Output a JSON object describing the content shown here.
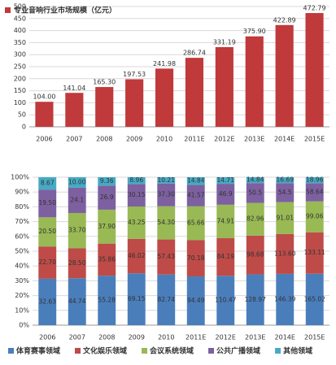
{
  "chart_data": [
    {
      "type": "bar",
      "legend_label": "专业音响行业市场规模（亿元）",
      "legend": "top-left",
      "categories": [
        "2006",
        "2007",
        "2008",
        "2009",
        "2010",
        "2011E",
        "2012E",
        "2013E",
        "2014E",
        "2015E"
      ],
      "values": [
        104.0,
        141.04,
        165.3,
        197.53,
        241.98,
        286.74,
        331.19,
        375.9,
        422.89,
        472.79
      ],
      "value_labels": [
        "104.00",
        "141.04",
        "165.30",
        "197.53",
        "241.98",
        "286.74",
        "331.19",
        "375.90",
        "422.89",
        "472.79"
      ],
      "color": "#c0393b",
      "ylim": [
        0,
        500
      ],
      "yticks": [
        0,
        50,
        100,
        150,
        200,
        250,
        300,
        350,
        400,
        450,
        500
      ],
      "grid": true
    },
    {
      "type": "stacked-percent-bar",
      "legend": "bottom",
      "categories": [
        "2006",
        "2007",
        "2008",
        "2009",
        "2010",
        "2011E",
        "2012E",
        "2013E",
        "2014E",
        "2015E"
      ],
      "ylim": [
        0,
        100
      ],
      "yticks": [
        {
          "value": 0,
          "label": "0%"
        },
        {
          "value": 10,
          "label": "10%"
        },
        {
          "value": 20,
          "label": "20%"
        },
        {
          "value": 30,
          "label": "30%"
        },
        {
          "value": 40,
          "label": "40%"
        },
        {
          "value": 50,
          "label": "50%"
        },
        {
          "value": 60,
          "label": "60%"
        },
        {
          "value": 70,
          "label": "70%"
        },
        {
          "value": 80,
          "label": "80%"
        },
        {
          "value": 90,
          "label": "90%"
        },
        {
          "value": 100,
          "label": "100%"
        }
      ],
      "grid": true,
      "series": [
        {
          "name": "体育赛事领域",
          "color": "#4a7ebb",
          "values": [
            32.63,
            44.74,
            55.28,
            69.15,
            82.74,
            94.49,
            110.47,
            128.97,
            146.39,
            165.02
          ],
          "value_labels": [
            "32.63",
            "44.74",
            "55.28",
            "69.15",
            "82.74",
            "94.49",
            "110.47",
            "128.97",
            "146.39",
            "165.02"
          ]
        },
        {
          "name": "文化娱乐领域",
          "color": "#be4b48",
          "values": [
            22.7,
            28.5,
            35.86,
            46.02,
            57.43,
            70.18,
            84.19,
            98.68,
            113.6,
            133.11
          ],
          "value_labels": [
            "22.70",
            "28.50",
            "35.86",
            "46.02",
            "57.43",
            "70.18",
            "84.19",
            "98.68",
            "113.60",
            "133.11"
          ]
        },
        {
          "name": "会议系统领域",
          "color": "#98b954",
          "values": [
            20.5,
            33.7,
            37.9,
            43.25,
            54.3,
            65.66,
            74.91,
            82.96,
            91.01,
            99.06
          ],
          "value_labels": [
            "20.50",
            "33.70",
            "37.90",
            "43.25",
            "54.30",
            "65.66",
            "74.91",
            "82.96",
            "91.01",
            "99.06"
          ]
        },
        {
          "name": "公共广播领域",
          "color": "#7d60a0",
          "values": [
            19.5,
            24.1,
            26.9,
            30.15,
            37.3,
            41.57,
            46.9,
            50.5,
            54.5,
            58.64
          ],
          "value_labels": [
            "19.50",
            "24.1",
            "26.9",
            "30.15",
            "37.30",
            "41.57",
            "46.9",
            "50.5",
            "54.5",
            "58.64"
          ]
        },
        {
          "name": "其他领域",
          "color": "#46aac5",
          "values": [
            8.67,
            10.0,
            9.36,
            8.96,
            10.21,
            14.84,
            14.71,
            14.84,
            16.69,
            18.96
          ],
          "value_labels": [
            "8.67",
            "10.00",
            "9.36",
            "8.96",
            "10.21",
            "14.84",
            "14.71",
            "14.84",
            "16.69",
            "18.96"
          ]
        }
      ]
    }
  ]
}
